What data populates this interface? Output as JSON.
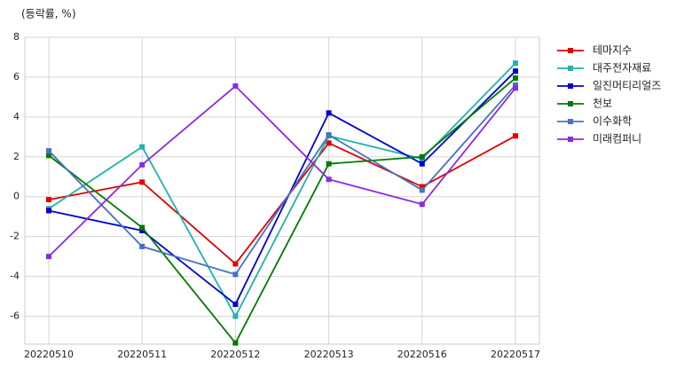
{
  "chart_data": {
    "type": "line",
    "title": "(등락률, %)",
    "categories": [
      "20220510",
      "20220511",
      "20220512",
      "20220513",
      "20220516",
      "20220517"
    ],
    "ylim": [
      -7.4,
      8
    ],
    "yticks": [
      -6,
      -4,
      -2,
      0,
      2,
      4,
      6,
      8
    ],
    "grid": true,
    "legend": "outside-right",
    "series": [
      {
        "name": "테마지수",
        "color": "#e00000",
        "values": [
          -0.15,
          0.73,
          -3.37,
          2.69,
          0.5,
          3.05
        ]
      },
      {
        "name": "대주전자재료",
        "color": "#20b2aa",
        "values": [
          -0.6,
          2.5,
          -6.0,
          3.05,
          1.9,
          6.7
        ]
      },
      {
        "name": "일진머티리얼즈",
        "color": "#0000cd",
        "values": [
          -0.7,
          -1.7,
          -5.4,
          4.2,
          1.65,
          6.3
        ]
      },
      {
        "name": "천보",
        "color": "#007a00",
        "values": [
          2.07,
          -1.55,
          -7.34,
          1.65,
          2.0,
          5.95
        ]
      },
      {
        "name": "이수화학",
        "color": "#4472c4",
        "values": [
          2.3,
          -2.5,
          -3.9,
          3.1,
          0.33,
          5.6
        ]
      },
      {
        "name": "미래컴퍼니",
        "color": "#8a2be2",
        "values": [
          -3.0,
          1.6,
          5.55,
          0.87,
          -0.38,
          5.45
        ]
      }
    ]
  }
}
